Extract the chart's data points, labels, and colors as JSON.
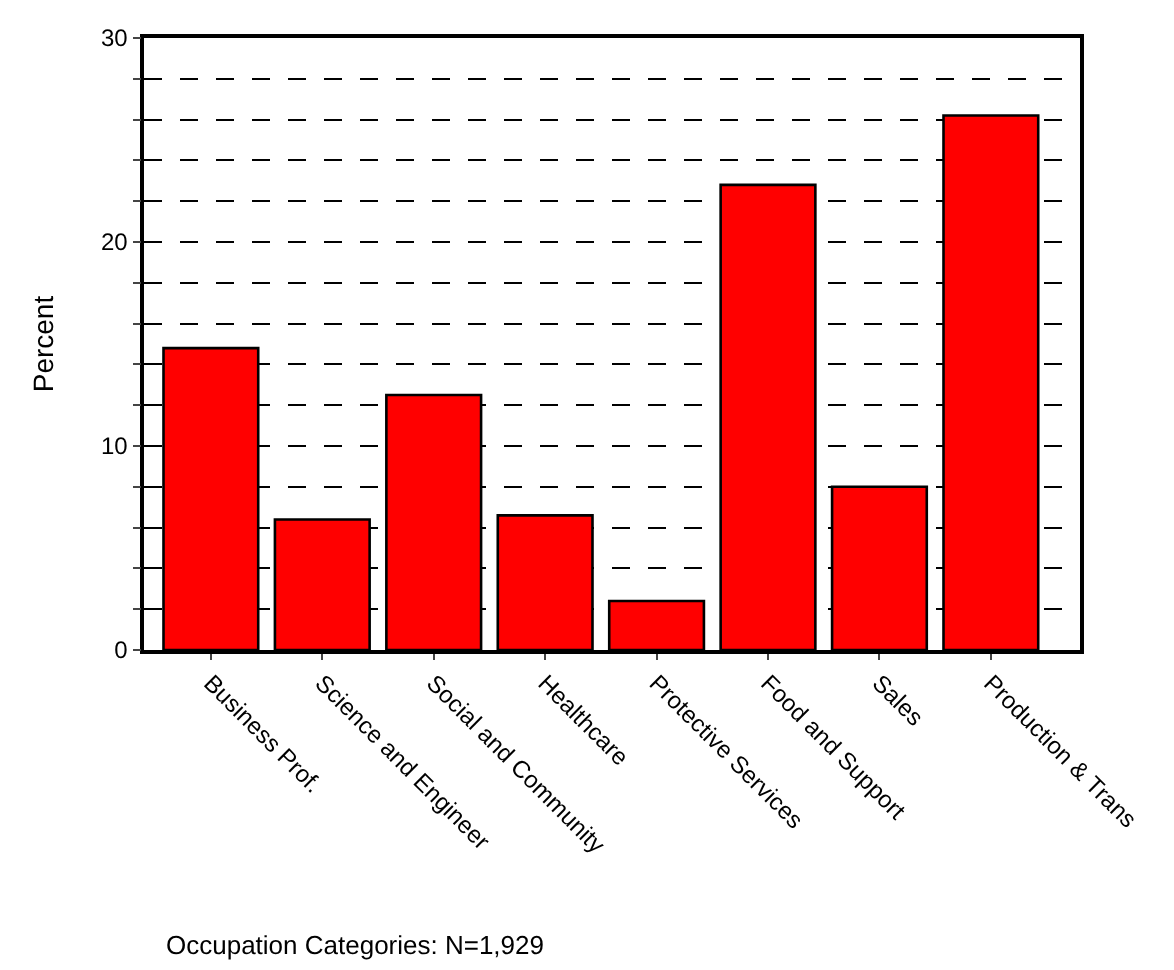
{
  "chart_data": {
    "type": "bar",
    "xlabel": "Occupation Categories: N=1,929",
    "ylabel": "Percent",
    "categories": [
      "Business Prof.",
      "Science and Engineer",
      "Social and Community",
      "Healthcare",
      "Protective Services",
      "Food and Support",
      "Sales",
      "Production & Trans"
    ],
    "values": [
      14.8,
      6.4,
      12.5,
      6.6,
      2.4,
      22.8,
      8.0,
      26.2
    ],
    "color": "#ff0000",
    "ylim": [
      0,
      30
    ],
    "yticks": [
      0,
      {
        "value": 2,
        "label": null
      },
      {
        "value": 4,
        "label": null
      },
      {
        "value": 6,
        "label": null
      },
      {
        "value": 8,
        "label": null
      },
      10,
      {
        "value": 12,
        "label": null
      },
      {
        "value": 14,
        "label": null
      },
      {
        "value": 16,
        "label": null
      },
      {
        "value": 18,
        "label": null
      },
      20,
      {
        "value": 22,
        "label": null
      },
      {
        "value": 24,
        "label": null
      },
      {
        "value": 26,
        "label": null
      },
      {
        "value": 28,
        "label": null
      },
      30
    ],
    "grid": "y",
    "line_style": "dashed"
  }
}
